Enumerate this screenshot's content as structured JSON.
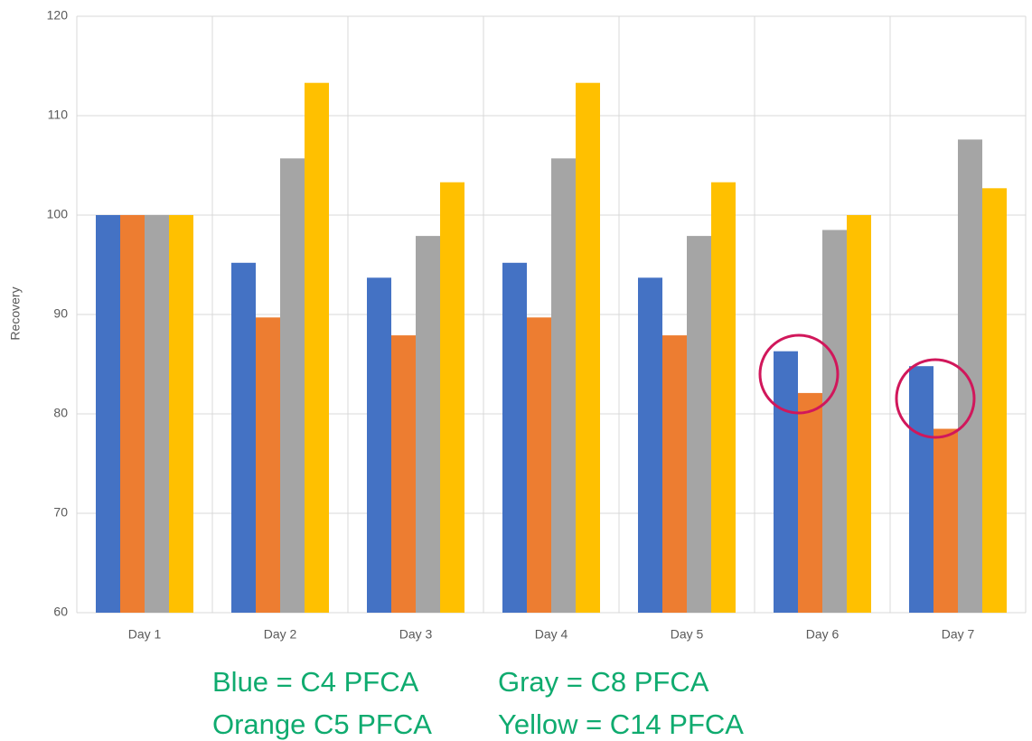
{
  "chart_data": {
    "type": "bar",
    "y_label": "Recovery",
    "categories": [
      "Day 1",
      "Day 2",
      "Day 3",
      "Day 4",
      "Day 5",
      "Day 6",
      "Day 7"
    ],
    "series": [
      {
        "color": "#4472c4",
        "values": [
          100,
          95.2,
          93.7,
          95.2,
          93.7,
          86.3,
          84.8
        ]
      },
      {
        "color": "#ed7d31",
        "values": [
          100,
          89.7,
          87.9,
          89.7,
          87.9,
          82.1,
          78.5
        ]
      },
      {
        "color": "#a5a5a5",
        "values": [
          100,
          105.7,
          97.9,
          105.7,
          97.9,
          98.5,
          107.6
        ]
      },
      {
        "color": "#ffc000",
        "values": [
          100,
          113.3,
          103.3,
          113.3,
          103.3,
          100,
          102.7
        ]
      }
    ],
    "ylim": [
      60,
      120
    ],
    "yticks": [
      60,
      70,
      80,
      90,
      100,
      110,
      120
    ],
    "grid": true,
    "annotations": [
      "Blue = C4 PFCA",
      "Gray = C8 PFCA",
      "Orange C5 PFCA",
      "Yellow = C14 PFCA"
    ]
  }
}
